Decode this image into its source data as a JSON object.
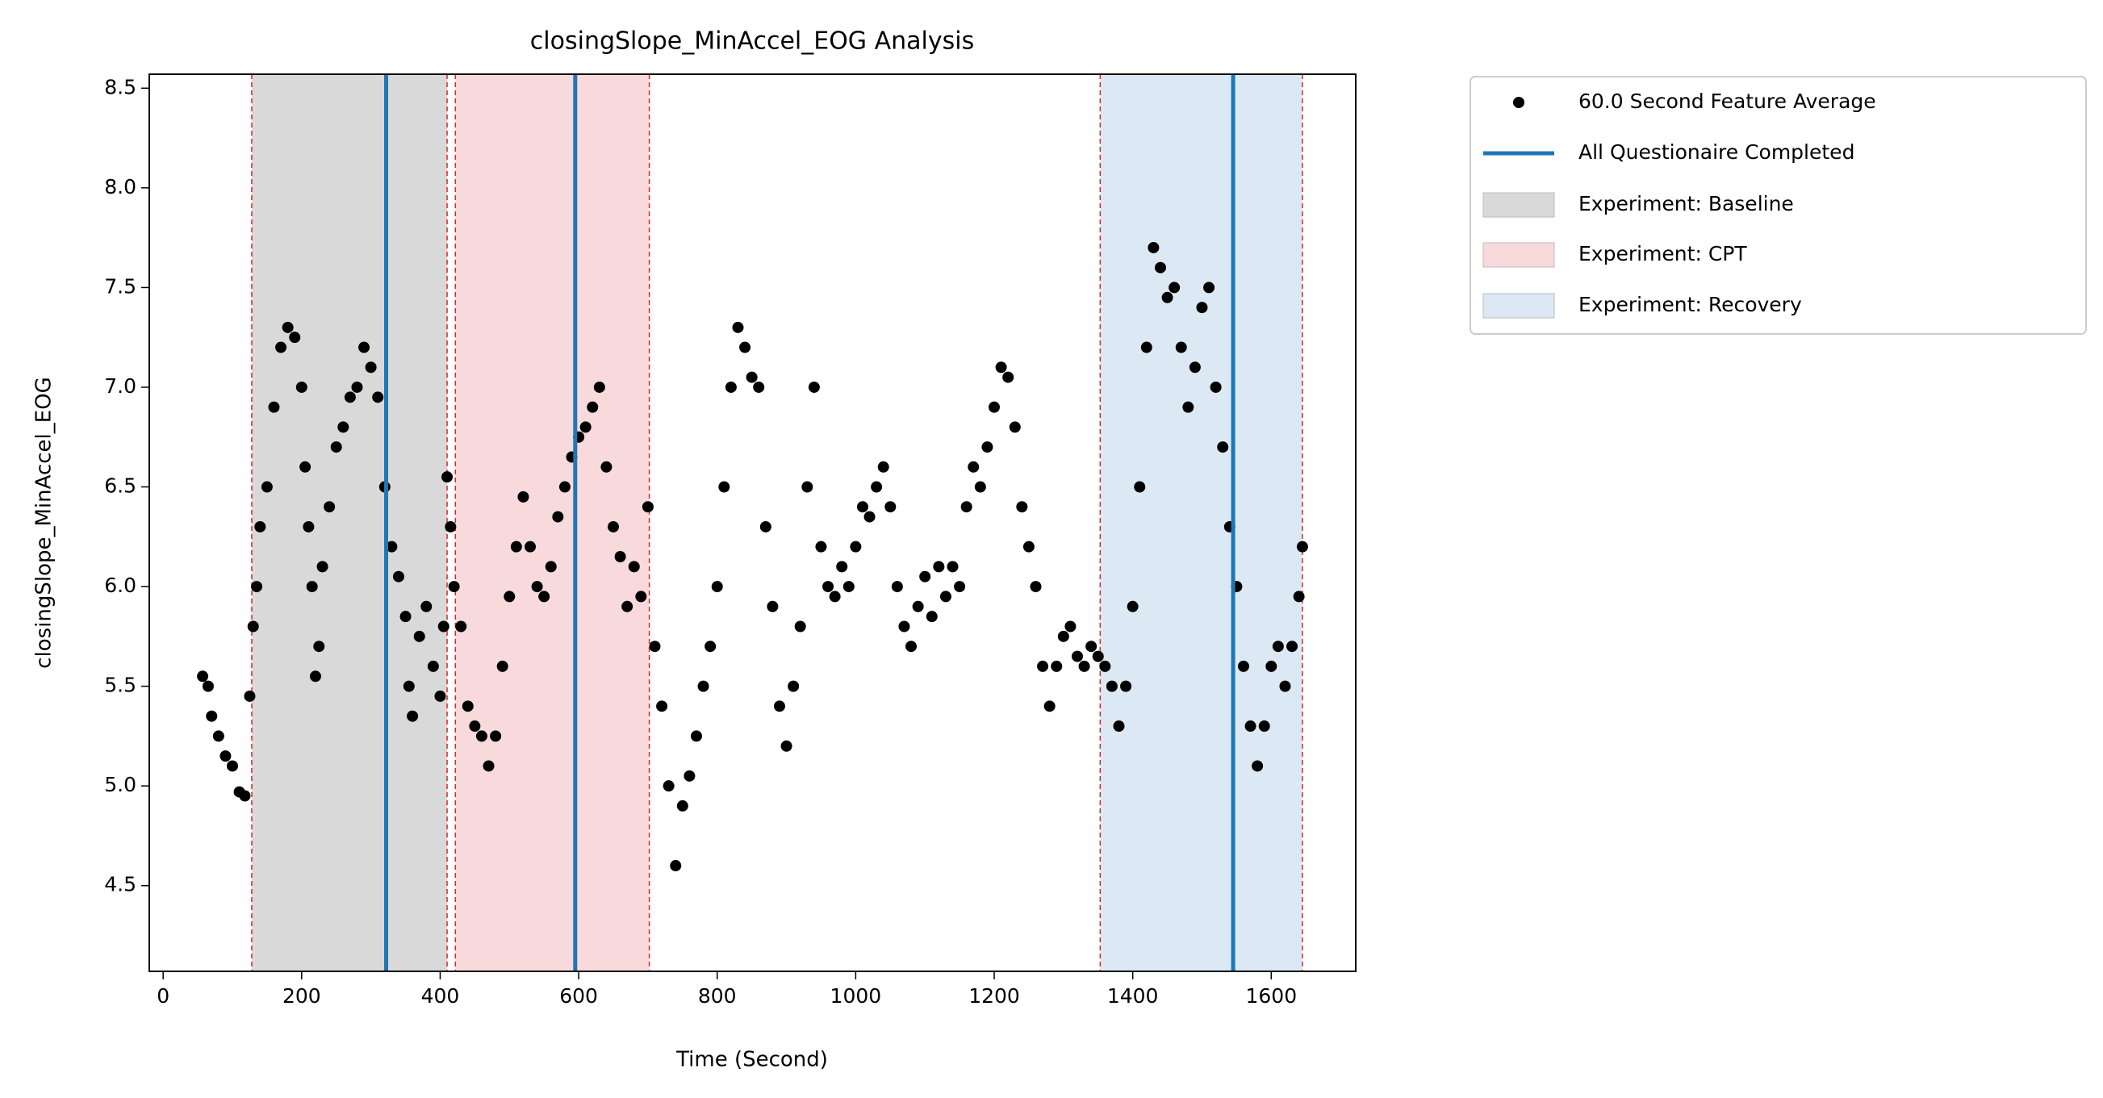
{
  "chart_data": {
    "type": "scatter",
    "title": "closingSlope_MinAccel_EOG Analysis",
    "x_label": "Time (Second)",
    "y_label": "closingSlope_MinAccel_EOG",
    "xlim": [
      -20,
      1722
    ],
    "ylim": [
      4.07,
      8.57
    ],
    "xticks": [
      0,
      200,
      400,
      600,
      800,
      1000,
      1200,
      1400,
      1600
    ],
    "yticks": [
      4.5,
      {
        "value": 5,
        "label": "5.0"
      },
      5.5,
      {
        "value": 6,
        "label": "6.0"
      },
      6.5,
      {
        "value": 7,
        "label": "7.0"
      },
      7.5,
      {
        "value": 8,
        "label": "8.0"
      },
      8.5
    ],
    "legend": "outside upper right",
    "series": [
      {
        "name": "60.0 Second Feature Average",
        "color": "#000000",
        "x": [
          57,
          65,
          70,
          80,
          90,
          100,
          110,
          118,
          125,
          130,
          135,
          140,
          150,
          160,
          170,
          180,
          190,
          200,
          205,
          210,
          215,
          220,
          225,
          230,
          240,
          250,
          260,
          270,
          280,
          290,
          300,
          310,
          320,
          330,
          340,
          350,
          355,
          360,
          370,
          380,
          390,
          400,
          405,
          410,
          415,
          420,
          430,
          440,
          450,
          460,
          470,
          480,
          490,
          500,
          510,
          520,
          530,
          540,
          550,
          560,
          570,
          580,
          590,
          600,
          610,
          620,
          630,
          640,
          650,
          660,
          670,
          680,
          690,
          700,
          710,
          720,
          730,
          740,
          750,
          760,
          770,
          780,
          790,
          800,
          810,
          820,
          830,
          840,
          850,
          860,
          870,
          880,
          890,
          900,
          910,
          920,
          930,
          940,
          950,
          960,
          970,
          980,
          990,
          1000,
          1010,
          1020,
          1030,
          1040,
          1050,
          1060,
          1070,
          1080,
          1090,
          1100,
          1110,
          1120,
          1130,
          1140,
          1150,
          1160,
          1170,
          1180,
          1190,
          1200,
          1210,
          1220,
          1230,
          1240,
          1250,
          1260,
          1270,
          1280,
          1290,
          1300,
          1310,
          1320,
          1330,
          1340,
          1350,
          1360,
          1370,
          1380,
          1390,
          1400,
          1410,
          1420,
          1430,
          1440,
          1450,
          1460,
          1470,
          1480,
          1490,
          1500,
          1510,
          1520,
          1530,
          1540,
          1550,
          1560,
          1570,
          1580,
          1590,
          1600,
          1610,
          1620,
          1630,
          1640,
          1645
        ],
        "values": [
          5.55,
          5.5,
          5.35,
          5.25,
          5.15,
          5.1,
          4.97,
          4.95,
          5.45,
          5.8,
          6.0,
          6.3,
          6.5,
          6.9,
          7.2,
          7.3,
          7.25,
          7.0,
          6.6,
          6.3,
          6.0,
          5.55,
          5.7,
          6.1,
          6.4,
          6.7,
          6.8,
          6.95,
          7.0,
          7.2,
          7.1,
          6.95,
          6.5,
          6.2,
          6.05,
          5.85,
          5.5,
          5.35,
          5.75,
          5.9,
          5.6,
          5.45,
          5.8,
          6.55,
          6.3,
          6.0,
          5.8,
          5.4,
          5.3,
          5.25,
          5.1,
          5.25,
          5.6,
          5.95,
          6.2,
          6.45,
          6.2,
          6.0,
          5.95,
          6.1,
          6.35,
          6.5,
          6.65,
          6.75,
          6.8,
          6.9,
          7.0,
          6.6,
          6.3,
          6.15,
          5.9,
          6.1,
          5.95,
          6.4,
          5.7,
          5.4,
          5.0,
          4.6,
          4.9,
          5.05,
          5.25,
          5.5,
          5.7,
          6.0,
          6.5,
          7.0,
          7.3,
          7.2,
          7.05,
          7.0,
          6.3,
          5.9,
          5.4,
          5.2,
          5.5,
          5.8,
          6.5,
          7.0,
          6.2,
          6.0,
          5.95,
          6.1,
          6.0,
          6.2,
          6.4,
          6.35,
          6.5,
          6.6,
          6.4,
          6.0,
          5.8,
          5.7,
          5.9,
          6.05,
          5.85,
          6.1,
          5.95,
          6.1,
          6.0,
          6.4,
          6.6,
          6.5,
          6.7,
          6.9,
          7.1,
          7.05,
          6.8,
          6.4,
          6.2,
          6.0,
          5.6,
          5.4,
          5.6,
          5.75,
          5.8,
          5.65,
          5.6,
          5.7,
          5.65,
          5.6,
          5.5,
          5.3,
          5.5,
          5.9,
          6.5,
          7.2,
          7.7,
          7.6,
          7.45,
          7.5,
          7.2,
          6.9,
          7.1,
          7.4,
          7.5,
          7.0,
          6.7,
          6.3,
          6.0,
          5.6,
          5.3,
          5.1,
          5.3,
          5.6,
          5.7,
          5.5,
          5.7,
          5.95,
          6.2
        ]
      }
    ],
    "vlines": {
      "name": "All Questionaire Completed",
      "color": "#1f77b4",
      "x": [
        322,
        595,
        1545
      ]
    },
    "spans": [
      {
        "name": "Experiment: Baseline",
        "color": "#d9d9d9",
        "range": [
          128,
          410
        ]
      },
      {
        "name": "Experiment: CPT",
        "color": "#f8dadd",
        "range": [
          422,
          702
        ]
      },
      {
        "name": "Experiment: Recovery",
        "color": "#dce9f4",
        "range": [
          1353,
          1645
        ]
      }
    ],
    "span_edge_color": "#d62728"
  }
}
